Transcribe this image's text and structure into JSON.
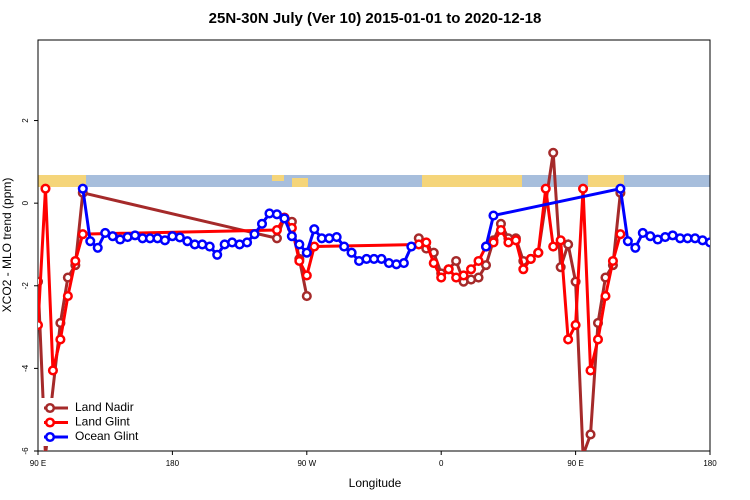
{
  "chart_data": {
    "type": "line",
    "title": "25N-30N July (Ver 10)   2015-01-01 to 2020-12-18",
    "x_label": "Longitude",
    "y_label": "XCO2 - MLO trend (ppm)",
    "xlim": [
      -270,
      180
    ],
    "xticks": [
      {
        "value": -270,
        "label": "90 E"
      },
      {
        "value": -180,
        "label": "180"
      },
      {
        "value": -90,
        "label": "90 W"
      },
      0,
      {
        "value": 90,
        "label": "90 E"
      },
      180
    ],
    "ylim": [
      -6,
      3.95
    ],
    "yticks": [
      -6,
      -4,
      -2,
      0,
      2
    ],
    "legend": "bottom-left",
    "series": [
      {
        "name": "Land Nadir",
        "color": "#a52a2a",
        "x": [
          -270,
          -265,
          -255,
          -250,
          -245,
          -240,
          -110,
          -105,
          -100,
          -95,
          -90,
          -85,
          -15,
          -10,
          -5,
          0,
          5,
          10,
          15,
          20,
          25,
          30,
          35,
          40,
          45,
          50,
          55,
          60,
          65,
          75,
          80,
          85,
          90,
          95,
          100,
          105,
          110,
          115,
          120
        ],
        "values": [
          -1.9,
          -6.1,
          -2.9,
          -1.8,
          -1.5,
          0.25,
          -0.85,
          -0.35,
          -0.45,
          -1.35,
          -2.25,
          null,
          -0.85,
          -1.1,
          -1.2,
          -1.7,
          -1.6,
          -1.4,
          -1.9,
          -1.85,
          -1.8,
          -1.5,
          -0.9,
          -0.5,
          -0.85,
          -0.85,
          -1.4,
          -1.35,
          -1.2,
          1.22,
          -1.55,
          -1.0,
          -1.9,
          -6.1,
          -5.6,
          -2.9,
          -1.8,
          -1.5,
          0.25
        ]
      },
      {
        "name": "Land Glint",
        "color": "#ff0000",
        "x": [
          -270,
          -265,
          -260,
          -255,
          -250,
          -245,
          -240,
          -110,
          -105,
          -100,
          -95,
          -90,
          -85,
          -15,
          -10,
          -5,
          0,
          5,
          10,
          15,
          20,
          25,
          30,
          35,
          40,
          45,
          50,
          55,
          60,
          65,
          70,
          75,
          80,
          85,
          90,
          95,
          100,
          105,
          110,
          115,
          120
        ],
        "values": [
          -2.95,
          0.35,
          -4.05,
          -3.3,
          -2.25,
          -1.4,
          -0.75,
          -0.65,
          -0.35,
          -0.6,
          -1.4,
          -1.75,
          -1.05,
          -1.0,
          -0.95,
          -1.45,
          -1.8,
          -1.6,
          -1.8,
          -1.75,
          -1.6,
          -1.4,
          -1.05,
          -0.95,
          -0.65,
          -0.95,
          -0.9,
          -1.6,
          -1.35,
          -1.2,
          0.35,
          -1.05,
          -0.9,
          -3.3,
          -2.95,
          0.35,
          -4.05,
          -3.3,
          -2.25,
          -1.4,
          -0.75
        ]
      },
      {
        "name": "Ocean Glint",
        "color": "#0000ff",
        "x": [
          -240,
          -235,
          -230,
          -225,
          -220,
          -215,
          -210,
          -205,
          -200,
          -195,
          -190,
          -185,
          -180,
          -175,
          -170,
          -165,
          -160,
          -155,
          -150,
          -145,
          -140,
          -135,
          -130,
          -125,
          -120,
          -115,
          -110,
          -105,
          -100,
          -95,
          -90,
          -85,
          -80,
          -75,
          -70,
          -65,
          -60,
          -55,
          -50,
          -45,
          -40,
          -35,
          -30,
          -25,
          -20,
          -15,
          30,
          35,
          120,
          125,
          130,
          135,
          140,
          145,
          150,
          155,
          160,
          165,
          170,
          175,
          180
        ],
        "values": [
          0.35,
          -0.92,
          -1.08,
          -0.72,
          -0.8,
          -0.88,
          -0.82,
          -0.78,
          -0.85,
          -0.85,
          -0.85,
          -0.9,
          -0.8,
          -0.83,
          -0.92,
          -1.0,
          -1.0,
          -1.05,
          -1.25,
          -1.0,
          -0.95,
          -1.0,
          -0.95,
          -0.75,
          -0.5,
          -0.25,
          -0.27,
          -0.37,
          -0.8,
          -1.0,
          -1.2,
          -0.63,
          -0.85,
          -0.85,
          -0.82,
          -1.05,
          -1.2,
          -1.4,
          -1.35,
          -1.35,
          -1.35,
          -1.45,
          -1.48,
          -1.45,
          -1.05,
          null,
          -1.05,
          -0.3,
          0.35,
          -0.92,
          -1.08,
          -0.72,
          -0.8,
          -0.88,
          -0.82,
          -0.78,
          -0.85,
          -0.85,
          -0.85,
          -0.9,
          -0.95
        ]
      }
    ]
  }
}
